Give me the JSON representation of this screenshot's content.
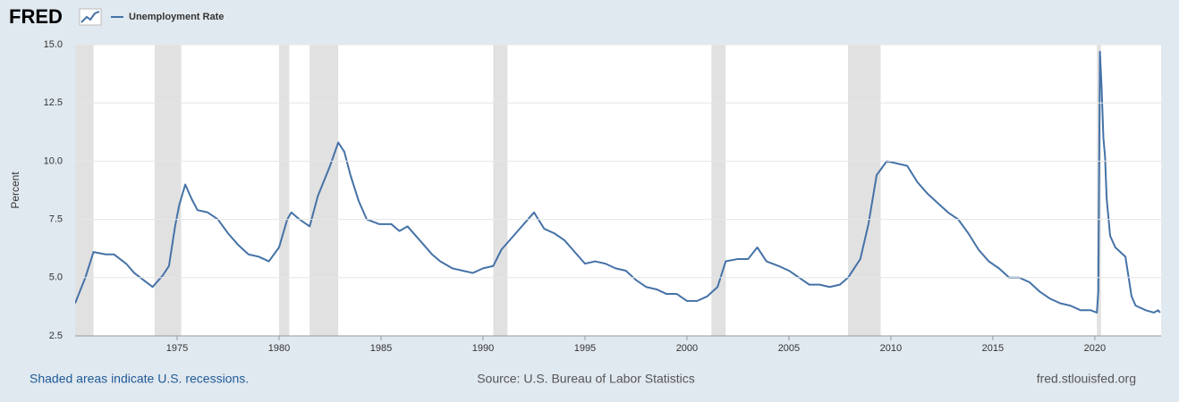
{
  "chart_data": {
    "type": "line",
    "brand": "FRED",
    "ylabel": "Percent",
    "note": "Shaded areas indicate U.S. recessions.",
    "source": "Source: U.S. Bureau of Labor Statistics",
    "site": "fred.stlouisfed.org",
    "xlim": [
      1970,
      2023.25
    ],
    "xticks": [
      1975,
      1980,
      1985,
      1990,
      1995,
      2000,
      2005,
      2010,
      2015,
      2020
    ],
    "ylim": [
      2.5,
      15
    ],
    "yticks": [
      {
        "value": 15,
        "label": "15.0"
      },
      12.5,
      {
        "value": 10,
        "label": "10.0"
      },
      7.5,
      {
        "value": 5,
        "label": "5.0"
      },
      2.5
    ],
    "grid": true,
    "recession_color": "#e1e1e1",
    "recessions": [
      [
        1969.92,
        1970.9
      ],
      [
        1973.9,
        1975.2
      ],
      [
        1980.0,
        1980.5
      ],
      [
        1981.5,
        1982.9
      ],
      [
        1990.5,
        1991.2
      ],
      [
        2001.2,
        2001.9
      ],
      [
        2007.9,
        2009.5
      ],
      [
        2020.1,
        2020.3
      ]
    ],
    "x": [
      1970.0,
      1970.5,
      1970.9,
      1971.5,
      1971.9,
      1972.5,
      1972.9,
      1973.5,
      1973.8,
      1974.3,
      1974.6,
      1974.9,
      1975.1,
      1975.4,
      1975.7,
      1976.0,
      1976.5,
      1977.0,
      1977.5,
      1978.0,
      1978.5,
      1979.0,
      1979.5,
      1980.0,
      1980.4,
      1980.6,
      1981.0,
      1981.5,
      1981.9,
      1982.5,
      1982.9,
      1983.2,
      1983.5,
      1983.9,
      1984.3,
      1984.9,
      1985.5,
      1985.9,
      1986.3,
      1986.9,
      1987.5,
      1987.9,
      1988.5,
      1989.0,
      1989.5,
      1990.0,
      1990.5,
      1990.9,
      1991.5,
      1992.0,
      1992.5,
      1993.0,
      1993.5,
      1994.0,
      1994.5,
      1995.0,
      1995.5,
      1996.0,
      1996.5,
      1997.0,
      1997.5,
      1998.0,
      1998.5,
      1999.0,
      1999.5,
      2000.0,
      2000.5,
      2001.0,
      2001.5,
      2001.9,
      2002.5,
      2003.0,
      2003.45,
      2003.9,
      2004.5,
      2005.0,
      2005.5,
      2006.0,
      2006.5,
      2007.0,
      2007.5,
      2007.9,
      2008.5,
      2008.9,
      2009.3,
      2009.8,
      2010.3,
      2010.8,
      2011.3,
      2011.8,
      2012.3,
      2012.8,
      2013.3,
      2013.8,
      2014.3,
      2014.8,
      2015.3,
      2015.8,
      2016.3,
      2016.8,
      2017.3,
      2017.8,
      2018.3,
      2018.8,
      2019.3,
      2019.8,
      2020.1,
      2020.17,
      2020.25,
      2020.33,
      2020.42,
      2020.5,
      2020.58,
      2020.75,
      2021.0,
      2021.5,
      2021.8,
      2022.0,
      2022.5,
      2022.9,
      2023.1,
      2023.2
    ],
    "series": [
      {
        "name": "Unemployment Rate",
        "color": "#4572a7",
        "values": [
          3.9,
          5.0,
          6.1,
          6.0,
          6.0,
          5.6,
          5.2,
          4.8,
          4.6,
          5.1,
          5.5,
          7.2,
          8.1,
          9.0,
          8.4,
          7.9,
          7.8,
          7.5,
          6.9,
          6.4,
          6.0,
          5.9,
          5.7,
          6.3,
          7.5,
          7.8,
          7.5,
          7.2,
          8.5,
          9.8,
          10.8,
          10.4,
          9.4,
          8.3,
          7.5,
          7.3,
          7.3,
          7.0,
          7.2,
          6.6,
          6.0,
          5.7,
          5.4,
          5.3,
          5.2,
          5.4,
          5.5,
          6.2,
          6.8,
          7.3,
          7.8,
          7.1,
          6.9,
          6.6,
          6.1,
          5.6,
          5.7,
          5.6,
          5.4,
          5.3,
          4.9,
          4.6,
          4.5,
          4.3,
          4.3,
          4.0,
          4.0,
          4.2,
          4.6,
          5.7,
          5.8,
          5.8,
          6.3,
          5.7,
          5.5,
          5.3,
          5.0,
          4.7,
          4.7,
          4.6,
          4.7,
          5.0,
          5.8,
          7.3,
          9.4,
          10.0,
          9.9,
          9.8,
          9.1,
          8.6,
          8.2,
          7.8,
          7.5,
          6.9,
          6.2,
          5.7,
          5.4,
          5.0,
          5.0,
          4.8,
          4.4,
          4.1,
          3.9,
          3.8,
          3.6,
          3.6,
          3.5,
          4.4,
          14.7,
          13.2,
          11.0,
          10.2,
          8.4,
          6.8,
          6.3,
          5.9,
          4.2,
          3.8,
          3.6,
          3.5,
          3.6,
          3.5
        ]
      }
    ]
  }
}
